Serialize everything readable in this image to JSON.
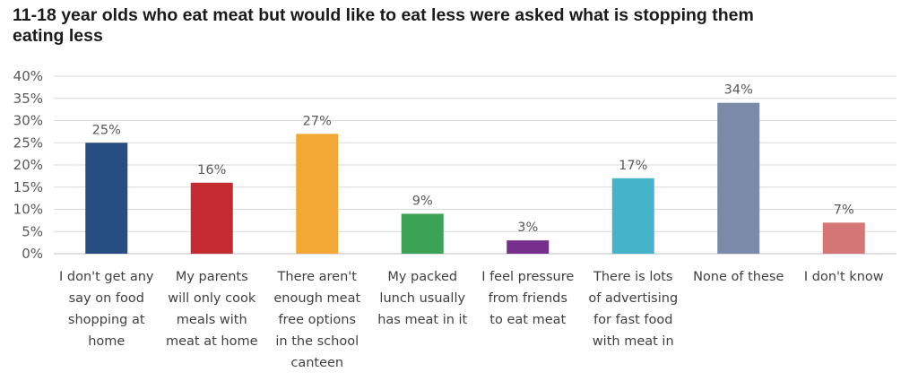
{
  "chart_data": {
    "type": "bar",
    "title": "11-18 year olds who eat meat but would like to eat less were asked what is stopping them eating less",
    "title_lines": [
      "11-18 year olds who eat meat but would like to eat less were asked what is stopping them",
      "eating less"
    ],
    "xlabel": "",
    "ylabel": "",
    "ylim": [
      0,
      40
    ],
    "yticks": [
      0,
      5,
      10,
      15,
      20,
      25,
      30,
      35,
      40
    ],
    "ytick_labels": [
      "0%",
      "5%",
      "10%",
      "15%",
      "20%",
      "25%",
      "30%",
      "35%",
      "40%"
    ],
    "grid": true,
    "legend": "none",
    "categories": [
      "I don't get any say on food shopping at home",
      "My parents will only cook meals with meat at home",
      "There aren't enough meat free options in the school canteen",
      "My packed lunch usually has meat in it",
      "I feel pressure from friends to eat meat",
      "There is lots of advertising for fast food with meat in",
      "None of these",
      "I don't know"
    ],
    "category_lines": [
      [
        "I don't get any",
        "say on food",
        "shopping at",
        "home"
      ],
      [
        "My parents",
        "will only cook",
        "meals with",
        "meat at home"
      ],
      [
        "There aren't",
        "enough meat",
        "free options",
        "in the school",
        "canteen"
      ],
      [
        "My packed",
        "lunch usually",
        "has meat in it"
      ],
      [
        "I feel pressure",
        "from friends",
        "to eat meat"
      ],
      [
        "There is lots",
        "of advertising",
        "for fast food",
        "with meat in"
      ],
      [
        "None of these"
      ],
      [
        "I don't know"
      ]
    ],
    "values": [
      25,
      16,
      27,
      9,
      3,
      17,
      34,
      7
    ],
    "value_labels": [
      "25%",
      "16%",
      "27%",
      "9%",
      "3%",
      "17%",
      "34%",
      "7%"
    ],
    "colors": [
      "#264E82",
      "#C32B31",
      "#F2A833",
      "#3CA356",
      "#762E8C",
      "#45B3C9",
      "#7A8AA8",
      "#D47676"
    ]
  }
}
